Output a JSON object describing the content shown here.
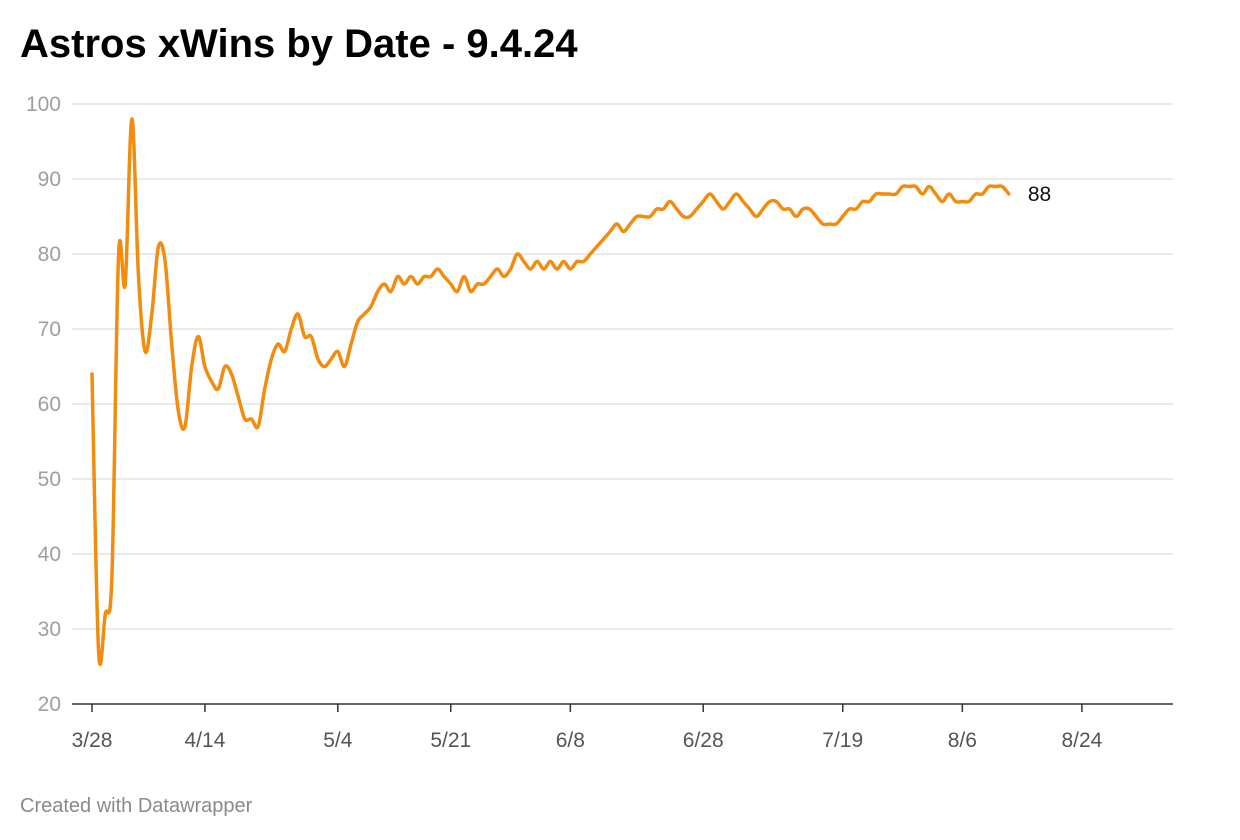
{
  "chart_data": {
    "type": "line",
    "title": "Astros xWins by Date - 9.4.24",
    "xlabel": "",
    "ylabel": "",
    "ylim": [
      20,
      100
    ],
    "yticks": [
      20,
      30,
      40,
      50,
      60,
      70,
      80,
      90,
      100
    ],
    "xlim": [
      "2024-03-28",
      "2024-09-04"
    ],
    "xticks": [
      {
        "date": "2024-03-28",
        "label": "3/28"
      },
      {
        "date": "2024-04-14",
        "label": "4/14"
      },
      {
        "date": "2024-05-04",
        "label": "5/4"
      },
      {
        "date": "2024-05-21",
        "label": "5/21"
      },
      {
        "date": "2024-06-08",
        "label": "6/8"
      },
      {
        "date": "2024-06-28",
        "label": "6/28"
      },
      {
        "date": "2024-07-19",
        "label": "7/19"
      },
      {
        "date": "2024-08-06",
        "label": "8/6"
      },
      {
        "date": "2024-08-24",
        "label": "8/24"
      }
    ],
    "grid": true,
    "line_color": "#f28c0f",
    "end_label": "88",
    "series": [
      {
        "points": [
          [
            "2024-03-28",
            64
          ],
          [
            "2024-03-29",
            27
          ],
          [
            "2024-03-30",
            32
          ],
          [
            "2024-03-31",
            37
          ],
          [
            "2024-04-01",
            80
          ],
          [
            "2024-04-02",
            76
          ],
          [
            "2024-04-03",
            98
          ],
          [
            "2024-04-04",
            77
          ],
          [
            "2024-04-05",
            67
          ],
          [
            "2024-04-06",
            72
          ],
          [
            "2024-04-07",
            81
          ],
          [
            "2024-04-08",
            79
          ],
          [
            "2024-04-09",
            68
          ],
          [
            "2024-04-10",
            59
          ],
          [
            "2024-04-11",
            57
          ],
          [
            "2024-04-12",
            65
          ],
          [
            "2024-04-13",
            69
          ],
          [
            "2024-04-14",
            65
          ],
          [
            "2024-04-15",
            63
          ],
          [
            "2024-04-16",
            62
          ],
          [
            "2024-04-17",
            65
          ],
          [
            "2024-04-18",
            64
          ],
          [
            "2024-04-19",
            61
          ],
          [
            "2024-04-20",
            58
          ],
          [
            "2024-04-21",
            58
          ],
          [
            "2024-04-22",
            57
          ],
          [
            "2024-04-23",
            62
          ],
          [
            "2024-04-24",
            66
          ],
          [
            "2024-04-25",
            68
          ],
          [
            "2024-04-26",
            67
          ],
          [
            "2024-04-27",
            70
          ],
          [
            "2024-04-28",
            72
          ],
          [
            "2024-04-29",
            69
          ],
          [
            "2024-04-30",
            69
          ],
          [
            "2024-05-01",
            66
          ],
          [
            "2024-05-02",
            65
          ],
          [
            "2024-05-03",
            66
          ],
          [
            "2024-05-04",
            67
          ],
          [
            "2024-05-05",
            65
          ],
          [
            "2024-05-06",
            68
          ],
          [
            "2024-05-07",
            71
          ],
          [
            "2024-05-08",
            72
          ],
          [
            "2024-05-09",
            73
          ],
          [
            "2024-05-10",
            75
          ],
          [
            "2024-05-11",
            76
          ],
          [
            "2024-05-12",
            75
          ],
          [
            "2024-05-13",
            77
          ],
          [
            "2024-05-14",
            76
          ],
          [
            "2024-05-15",
            77
          ],
          [
            "2024-05-16",
            76
          ],
          [
            "2024-05-17",
            77
          ],
          [
            "2024-05-18",
            77
          ],
          [
            "2024-05-19",
            78
          ],
          [
            "2024-05-20",
            77
          ],
          [
            "2024-05-21",
            76
          ],
          [
            "2024-05-22",
            75
          ],
          [
            "2024-05-23",
            77
          ],
          [
            "2024-05-24",
            75
          ],
          [
            "2024-05-25",
            76
          ],
          [
            "2024-05-26",
            76
          ],
          [
            "2024-05-27",
            77
          ],
          [
            "2024-05-28",
            78
          ],
          [
            "2024-05-29",
            77
          ],
          [
            "2024-05-30",
            78
          ],
          [
            "2024-05-31",
            80
          ],
          [
            "2024-06-01",
            79
          ],
          [
            "2024-06-02",
            78
          ],
          [
            "2024-06-03",
            79
          ],
          [
            "2024-06-04",
            78
          ],
          [
            "2024-06-05",
            79
          ],
          [
            "2024-06-06",
            78
          ],
          [
            "2024-06-07",
            79
          ],
          [
            "2024-06-08",
            78
          ],
          [
            "2024-06-09",
            79
          ],
          [
            "2024-06-10",
            79
          ],
          [
            "2024-06-11",
            80
          ],
          [
            "2024-06-12",
            81
          ],
          [
            "2024-06-13",
            82
          ],
          [
            "2024-06-14",
            83
          ],
          [
            "2024-06-15",
            84
          ],
          [
            "2024-06-16",
            83
          ],
          [
            "2024-06-17",
            84
          ],
          [
            "2024-06-18",
            85
          ],
          [
            "2024-06-19",
            85
          ],
          [
            "2024-06-20",
            85
          ],
          [
            "2024-06-21",
            86
          ],
          [
            "2024-06-22",
            86
          ],
          [
            "2024-06-23",
            87
          ],
          [
            "2024-06-24",
            86
          ],
          [
            "2024-06-25",
            85
          ],
          [
            "2024-06-26",
            85
          ],
          [
            "2024-06-27",
            86
          ],
          [
            "2024-06-28",
            87
          ],
          [
            "2024-06-29",
            88
          ],
          [
            "2024-06-30",
            87
          ],
          [
            "2024-07-01",
            86
          ],
          [
            "2024-07-02",
            87
          ],
          [
            "2024-07-03",
            88
          ],
          [
            "2024-07-04",
            87
          ],
          [
            "2024-07-05",
            86
          ],
          [
            "2024-07-06",
            85
          ],
          [
            "2024-07-07",
            86
          ],
          [
            "2024-07-08",
            87
          ],
          [
            "2024-07-09",
            87
          ],
          [
            "2024-07-10",
            86
          ],
          [
            "2024-07-11",
            86
          ],
          [
            "2024-07-12",
            85
          ],
          [
            "2024-07-13",
            86
          ],
          [
            "2024-07-14",
            86
          ],
          [
            "2024-07-15",
            85
          ],
          [
            "2024-07-16",
            84
          ],
          [
            "2024-07-17",
            84
          ],
          [
            "2024-07-18",
            84
          ],
          [
            "2024-07-19",
            85
          ],
          [
            "2024-07-20",
            86
          ],
          [
            "2024-07-21",
            86
          ],
          [
            "2024-07-22",
            87
          ],
          [
            "2024-07-23",
            87
          ],
          [
            "2024-07-24",
            88
          ],
          [
            "2024-07-25",
            88
          ],
          [
            "2024-07-26",
            88
          ],
          [
            "2024-07-27",
            88
          ],
          [
            "2024-07-28",
            89
          ],
          [
            "2024-07-29",
            89
          ],
          [
            "2024-07-30",
            89
          ],
          [
            "2024-07-31",
            88
          ],
          [
            "2024-08-01",
            89
          ],
          [
            "2024-08-02",
            88
          ],
          [
            "2024-08-03",
            87
          ],
          [
            "2024-08-04",
            88
          ],
          [
            "2024-08-05",
            87
          ],
          [
            "2024-08-06",
            87
          ],
          [
            "2024-08-07",
            87
          ],
          [
            "2024-08-08",
            88
          ],
          [
            "2024-08-09",
            88
          ],
          [
            "2024-08-10",
            89
          ],
          [
            "2024-08-11",
            89
          ],
          [
            "2024-08-12",
            89
          ],
          [
            "2024-08-13",
            88
          ]
        ]
      }
    ]
  },
  "footer": {
    "credit": "Created with Datawrapper"
  }
}
